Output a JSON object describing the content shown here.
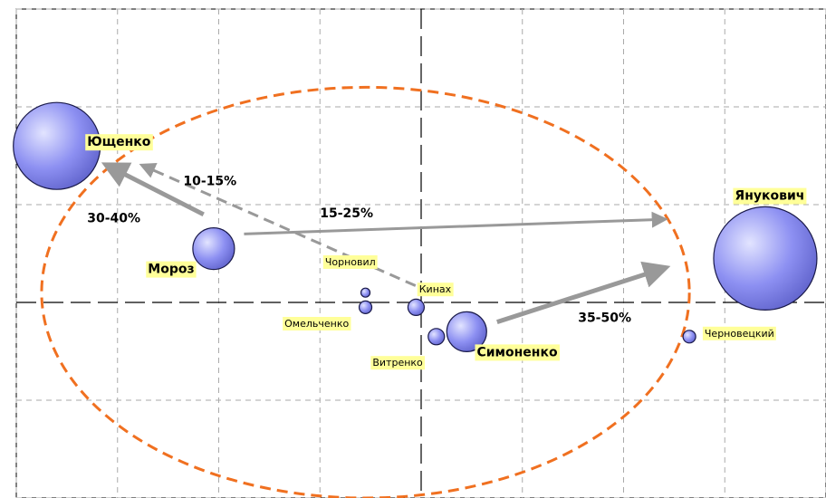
{
  "chart_data": {
    "type": "bubble",
    "title": "",
    "xlabel": "",
    "ylabel": "",
    "xlim": [
      -4,
      4
    ],
    "ylim": [
      -2,
      3
    ],
    "grid": true,
    "colors": {
      "bubble_fill": "#8a8ef0",
      "bubble_stroke": "#1a1a4a",
      "label_bg": "#ffff99",
      "arrow": "#999999",
      "ellipse": "#f07020"
    },
    "points": [
      {
        "name": "Ющенко",
        "x": -3.6,
        "y": 1.6,
        "r": 48,
        "style": "bold",
        "lx": -3.3,
        "ly": 1.6,
        "anchor": "start"
      },
      {
        "name": "Янукович",
        "x": 3.4,
        "y": 0.45,
        "r": 57,
        "style": "bold",
        "lx": 3.1,
        "ly": 1.05,
        "anchor": "start"
      },
      {
        "name": "Мороз",
        "x": -2.05,
        "y": 0.55,
        "r": 23,
        "style": "bold",
        "lx": -2.7,
        "ly": 0.3,
        "anchor": "start"
      },
      {
        "name": "Симоненко",
        "x": 0.45,
        "y": -0.3,
        "r": 22,
        "style": "bold",
        "lx": 0.55,
        "ly": -0.55,
        "anchor": "start"
      },
      {
        "name": "Кинах",
        "x": -0.05,
        "y": -0.05,
        "r": 9,
        "style": "small",
        "lx": -0.02,
        "ly": 0.1,
        "anchor": "start"
      },
      {
        "name": "Витренко",
        "x": 0.15,
        "y": -0.35,
        "r": 9,
        "style": "small",
        "lx": -0.48,
        "ly": -0.65,
        "anchor": "start"
      },
      {
        "name": "Чорновил",
        "x": -0.55,
        "y": 0.1,
        "r": 5,
        "style": "small",
        "lx": -0.95,
        "ly": 0.38,
        "anchor": "start"
      },
      {
        "name": "Омельченко",
        "x": -0.55,
        "y": -0.05,
        "r": 7,
        "style": "small",
        "lx": -1.35,
        "ly": -0.25,
        "anchor": "start"
      },
      {
        "name": "Черновецкий",
        "x": 2.65,
        "y": -0.35,
        "r": 7,
        "style": "small",
        "lx": 2.8,
        "ly": -0.35,
        "anchor": "start"
      }
    ],
    "arrows": [
      {
        "from": [
          -2.15,
          0.9
        ],
        "to": [
          -3.1,
          1.4
        ],
        "label": "30-40%",
        "lx": -3.3,
        "ly": 0.82,
        "dashed": false,
        "width": 5
      },
      {
        "from": [
          0.1,
          0.1
        ],
        "to": [
          -2.75,
          1.4
        ],
        "label": "10-15%",
        "lx": -2.35,
        "ly": 1.2,
        "dashed": true,
        "width": 3
      },
      {
        "from": [
          -1.75,
          0.7
        ],
        "to": [
          2.4,
          0.85
        ],
        "label": "15-25%",
        "lx": -1.0,
        "ly": 0.87,
        "dashed": false,
        "width": 3
      },
      {
        "from": [
          0.75,
          -0.2
        ],
        "to": [
          2.4,
          0.35
        ],
        "label": "35-50%",
        "lx": 1.55,
        "ly": -0.2,
        "dashed": false,
        "width": 5
      }
    ],
    "ellipse": {
      "cx": -0.55,
      "cy": 0.1,
      "rx": 3.2,
      "ry": 2.1
    }
  }
}
